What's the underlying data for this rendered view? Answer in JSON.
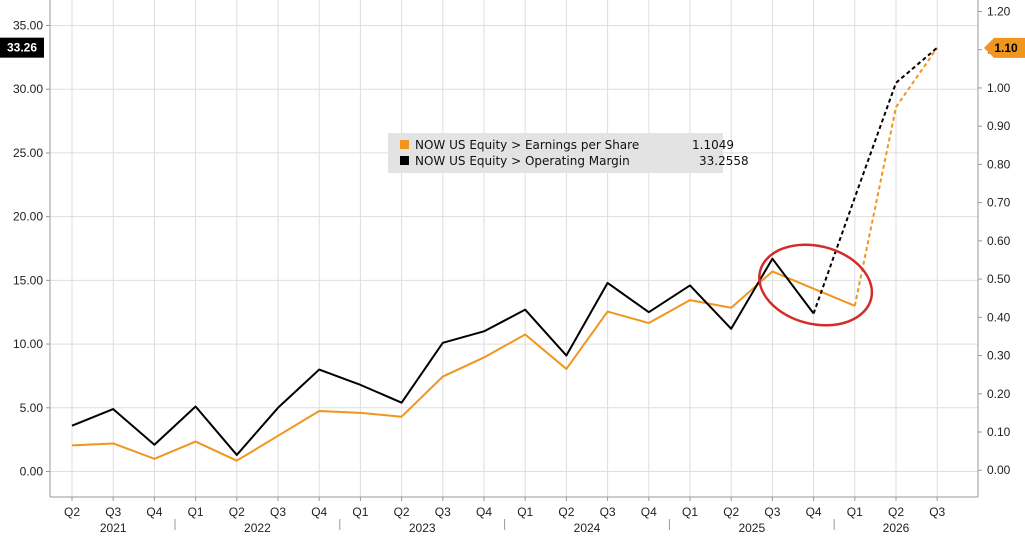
{
  "chart_data": {
    "type": "line",
    "title": "",
    "xlabel": "",
    "categories": [
      "Q2",
      "Q3",
      "Q4",
      "Q1",
      "Q2",
      "Q3",
      "Q4",
      "Q1",
      "Q2",
      "Q3",
      "Q4",
      "Q1",
      "Q2",
      "Q3",
      "Q4",
      "Q1",
      "Q2",
      "Q3",
      "Q4",
      "Q1",
      "Q2",
      "Q3"
    ],
    "years": [
      {
        "label": "2021",
        "start": 0,
        "end": 2
      },
      {
        "label": "2022",
        "start": 3,
        "end": 6
      },
      {
        "label": "2023",
        "start": 7,
        "end": 10
      },
      {
        "label": "2024",
        "start": 11,
        "end": 14
      },
      {
        "label": "2025",
        "start": 15,
        "end": 18
      },
      {
        "label": "2026",
        "start": 19,
        "end": 21
      }
    ],
    "left_axis": {
      "ylim": [
        -2,
        37
      ],
      "ticks": [
        "0.00",
        "5.00",
        "10.00",
        "15.00",
        "20.00",
        "25.00",
        "30.00",
        "35.00"
      ],
      "tick_values": [
        0,
        5,
        10,
        15,
        20,
        25,
        30,
        35
      ]
    },
    "right_axis": {
      "ylim": [
        -0.07,
        1.23
      ],
      "ticks": [
        "0.00",
        "0.10",
        "0.20",
        "0.30",
        "0.40",
        "0.50",
        "0.60",
        "0.70",
        "0.80",
        "0.90",
        "1.00",
        "1.10",
        "1.20"
      ],
      "tick_values": [
        0,
        0.1,
        0.2,
        0.3,
        0.4,
        0.5,
        0.6,
        0.7,
        0.8,
        0.9,
        1.0,
        1.1,
        1.2
      ]
    },
    "grid": true,
    "legend_position": "center",
    "series": [
      {
        "name": "NOW US Equity > Earnings per Share",
        "last_value": "1.1049",
        "axis": "right",
        "color": "#F0961E",
        "actual_until": 19,
        "values": [
          0.065,
          0.07,
          0.03,
          0.075,
          0.025,
          0.09,
          0.155,
          0.15,
          0.14,
          0.245,
          0.295,
          0.355,
          0.265,
          0.415,
          0.385,
          0.445,
          0.425,
          0.52,
          0.475,
          0.43,
          0.95,
          1.105
        ]
      },
      {
        "name": "NOW US Equity > Operating Margin",
        "last_value": "33.2558",
        "axis": "left",
        "color": "#000000",
        "actual_until": 18,
        "values": [
          3.6,
          4.9,
          2.1,
          5.1,
          1.3,
          5.0,
          8.0,
          6.8,
          5.4,
          10.1,
          11.0,
          12.7,
          9.1,
          14.8,
          12.5,
          14.6,
          11.2,
          16.7,
          12.4,
          21.5,
          30.5,
          33.2558
        ]
      }
    ],
    "badges": {
      "left": {
        "text": "33.26",
        "value": 33.26,
        "color": "#000000"
      },
      "right": {
        "text": "1.10",
        "value": 1.1049,
        "color": "#F0961E"
      }
    },
    "annotation": {
      "type": "ellipse",
      "color": "#D42B2B",
      "around_categories": [
        17,
        19
      ]
    }
  }
}
